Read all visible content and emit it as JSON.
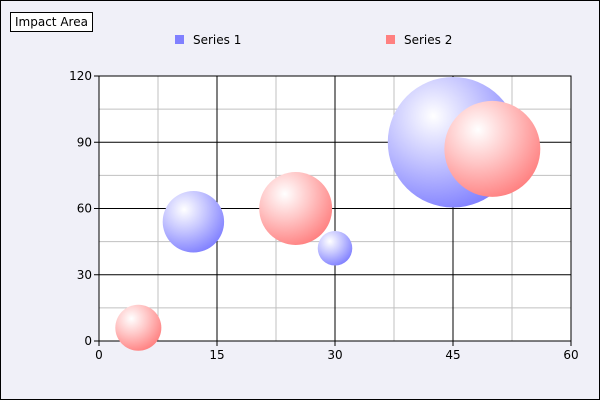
{
  "impact_label": "Impact Area",
  "colors": {
    "series1": "#8080ff",
    "series2": "#ff8080",
    "major_grid": "#000000",
    "minor_grid": "#c0c0c0",
    "background": "#f0f0f8",
    "plot_background": "#ffffff"
  },
  "chart_data": {
    "type": "scatter",
    "subtype": "bubble",
    "title": "",
    "xlabel": "",
    "ylabel": "",
    "xlim": [
      0,
      60
    ],
    "ylim": [
      0,
      120
    ],
    "x_ticks": [
      "0",
      "15",
      "30",
      "45",
      "60"
    ],
    "y_ticks": [
      "0",
      "30",
      "60",
      "90",
      "120"
    ],
    "grid": true,
    "legend": "top",
    "series": [
      {
        "name": "Series 1",
        "points": [
          {
            "x": 12,
            "y": 54,
            "size": 16
          },
          {
            "x": 30,
            "y": 42,
            "size": 9
          },
          {
            "x": 45,
            "y": 90,
            "size": 34
          }
        ]
      },
      {
        "name": "Series 2",
        "points": [
          {
            "x": 5,
            "y": 6,
            "size": 12
          },
          {
            "x": 25,
            "y": 60,
            "size": 19
          },
          {
            "x": 50,
            "y": 87,
            "size": 25
          }
        ]
      }
    ]
  }
}
